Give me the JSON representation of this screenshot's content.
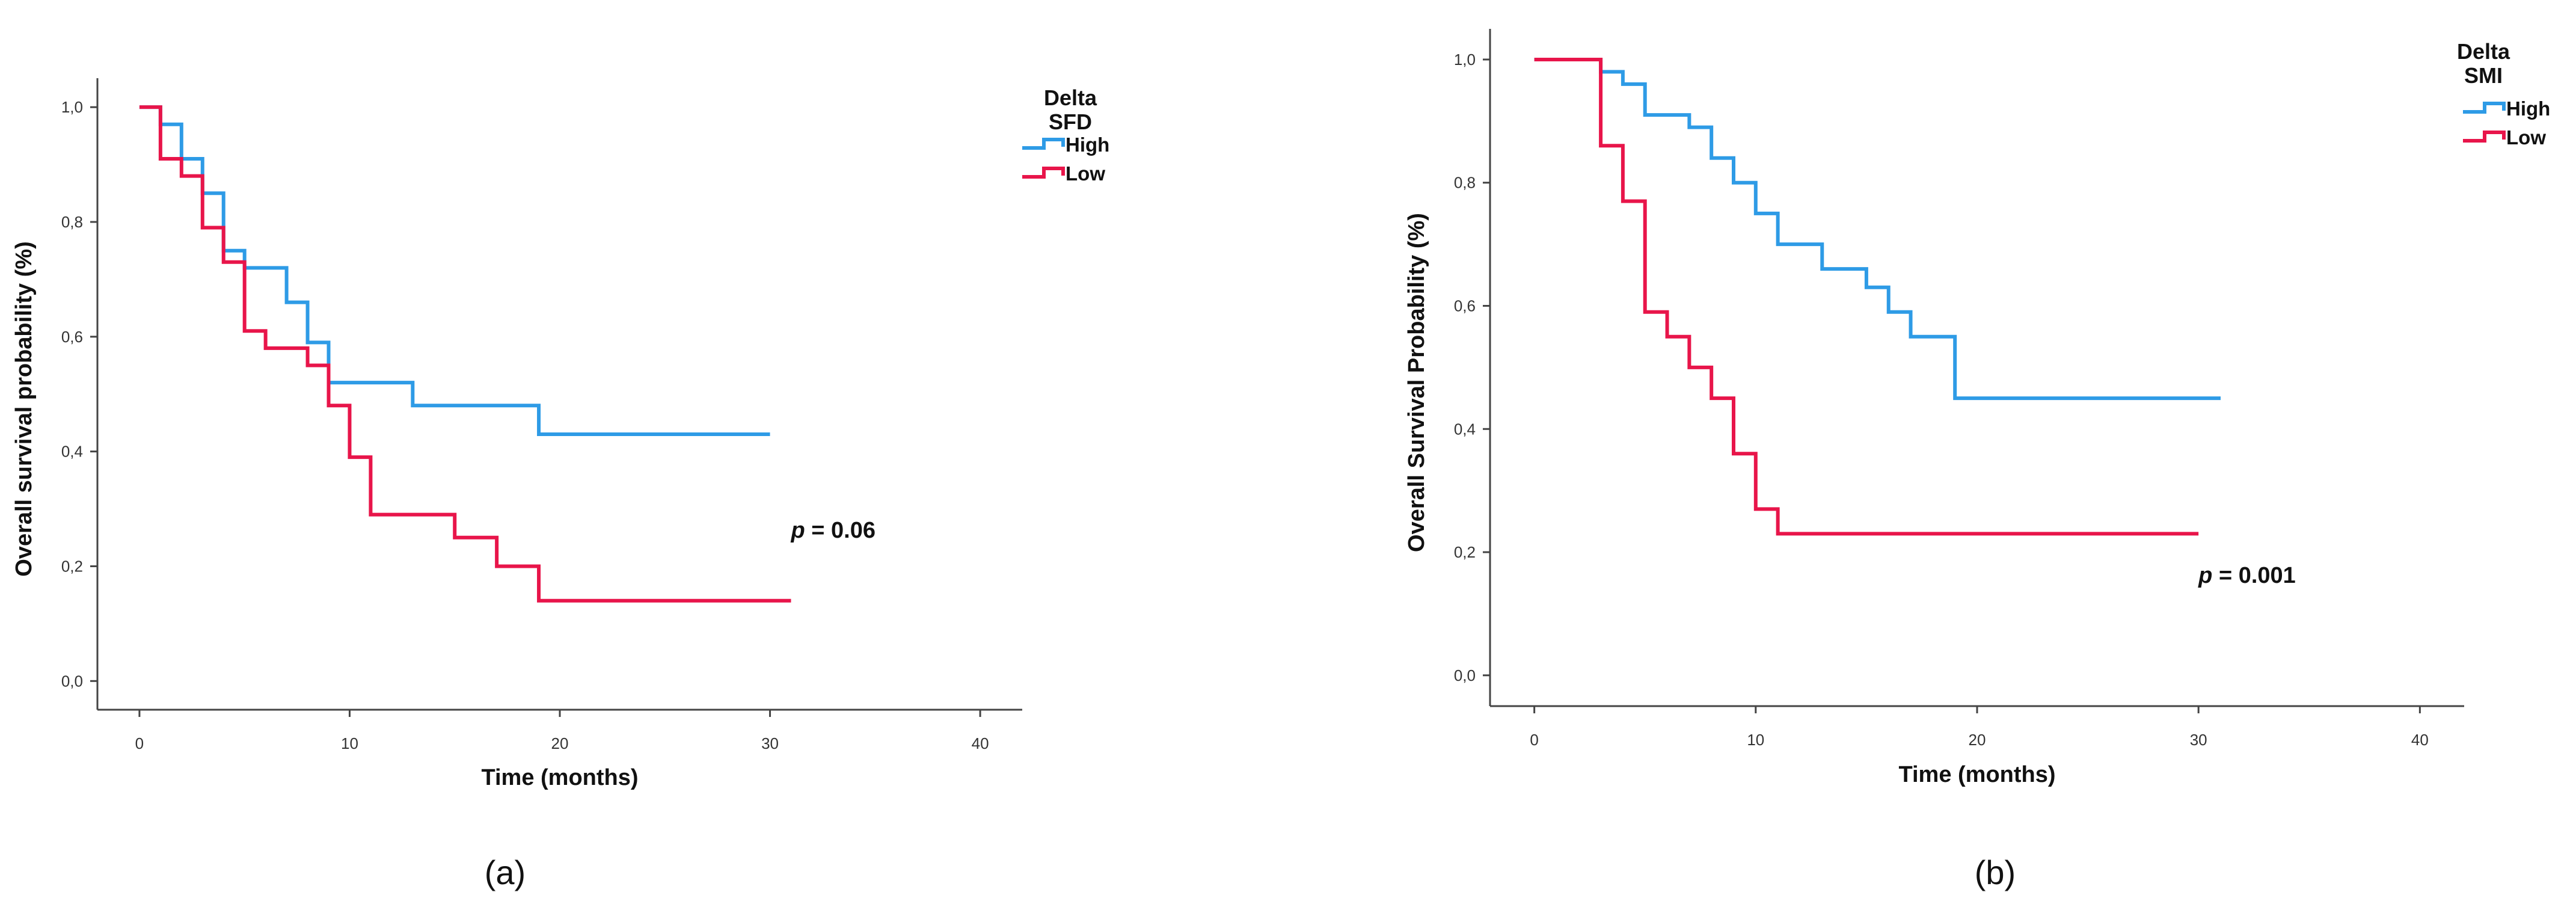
{
  "chart_data": [
    {
      "type": "line",
      "subtype": "kaplan-meier",
      "caption": "(a)",
      "xlabel": "Time (months)",
      "ylabel": "Overall survival probability (%)",
      "xlim": [
        -2,
        42
      ],
      "ylim": [
        -0.05,
        1.04
      ],
      "xticks": [
        0,
        10,
        20,
        30,
        40
      ],
      "xtick_labels": [
        "0",
        "10",
        "20",
        "30",
        "40"
      ],
      "yticks": [
        0.0,
        0.2,
        0.4,
        0.6,
        0.8,
        1.0
      ],
      "ytick_labels": [
        "0,0",
        "0,2",
        "0,4",
        "0,6",
        "0,8",
        "1,0"
      ],
      "legend": {
        "title_lines": [
          "Delta",
          "SFD"
        ],
        "placement": "top-right"
      },
      "annotation": {
        "prefix": "p",
        "text": " = 0.06",
        "x": 31,
        "y": 0.25
      },
      "series": [
        {
          "name": "High",
          "color": "#2E9BE6",
          "x": [
            0,
            1,
            2,
            3,
            4,
            5,
            7,
            8,
            9,
            13,
            19,
            30
          ],
          "y": [
            1.0,
            0.97,
            0.91,
            0.85,
            0.75,
            0.72,
            0.66,
            0.59,
            0.52,
            0.48,
            0.43,
            0.43
          ]
        },
        {
          "name": "Low",
          "color": "#E8154A",
          "x": [
            0,
            1,
            2,
            3,
            4,
            5,
            6,
            8,
            9,
            10,
            11,
            15,
            17,
            19,
            31
          ],
          "y": [
            1.0,
            0.91,
            0.88,
            0.79,
            0.73,
            0.61,
            0.58,
            0.55,
            0.48,
            0.39,
            0.29,
            0.25,
            0.2,
            0.14,
            0.14
          ]
        }
      ]
    },
    {
      "type": "line",
      "subtype": "kaplan-meier",
      "caption": "(b)",
      "xlabel": "Time (months)",
      "ylabel": "Overall Survival Probability (%)",
      "xlim": [
        -2,
        42
      ],
      "ylim": [
        -0.05,
        1.04
      ],
      "xticks": [
        0,
        10,
        20,
        30,
        40
      ],
      "xtick_labels": [
        "0",
        "10",
        "20",
        "30",
        "40"
      ],
      "yticks": [
        0.0,
        0.2,
        0.4,
        0.6,
        0.8,
        1.0
      ],
      "ytick_labels": [
        "0,0",
        "0,2",
        "0,4",
        "0,6",
        "0,8",
        "1,0"
      ],
      "legend": {
        "title_lines": [
          "Delta",
          "SMI"
        ],
        "placement": "top-right"
      },
      "annotation": {
        "prefix": "p",
        "text": " = 0.001",
        "x": 30,
        "y": 0.15
      },
      "series": [
        {
          "name": "High",
          "color": "#2E9BE6",
          "x": [
            0,
            3,
            4,
            5,
            7,
            8,
            9,
            10,
            11,
            13,
            15,
            16,
            17,
            19,
            31
          ],
          "y": [
            1.0,
            0.98,
            0.96,
            0.91,
            0.89,
            0.84,
            0.8,
            0.75,
            0.7,
            0.66,
            0.63,
            0.59,
            0.55,
            0.45,
            0.45
          ]
        },
        {
          "name": "Low",
          "color": "#E8154A",
          "x": [
            0,
            3,
            4,
            5,
            6,
            7,
            8,
            9,
            10,
            11,
            30
          ],
          "y": [
            1.0,
            0.86,
            0.77,
            0.59,
            0.55,
            0.5,
            0.45,
            0.36,
            0.27,
            0.23,
            0.23
          ]
        }
      ]
    }
  ]
}
